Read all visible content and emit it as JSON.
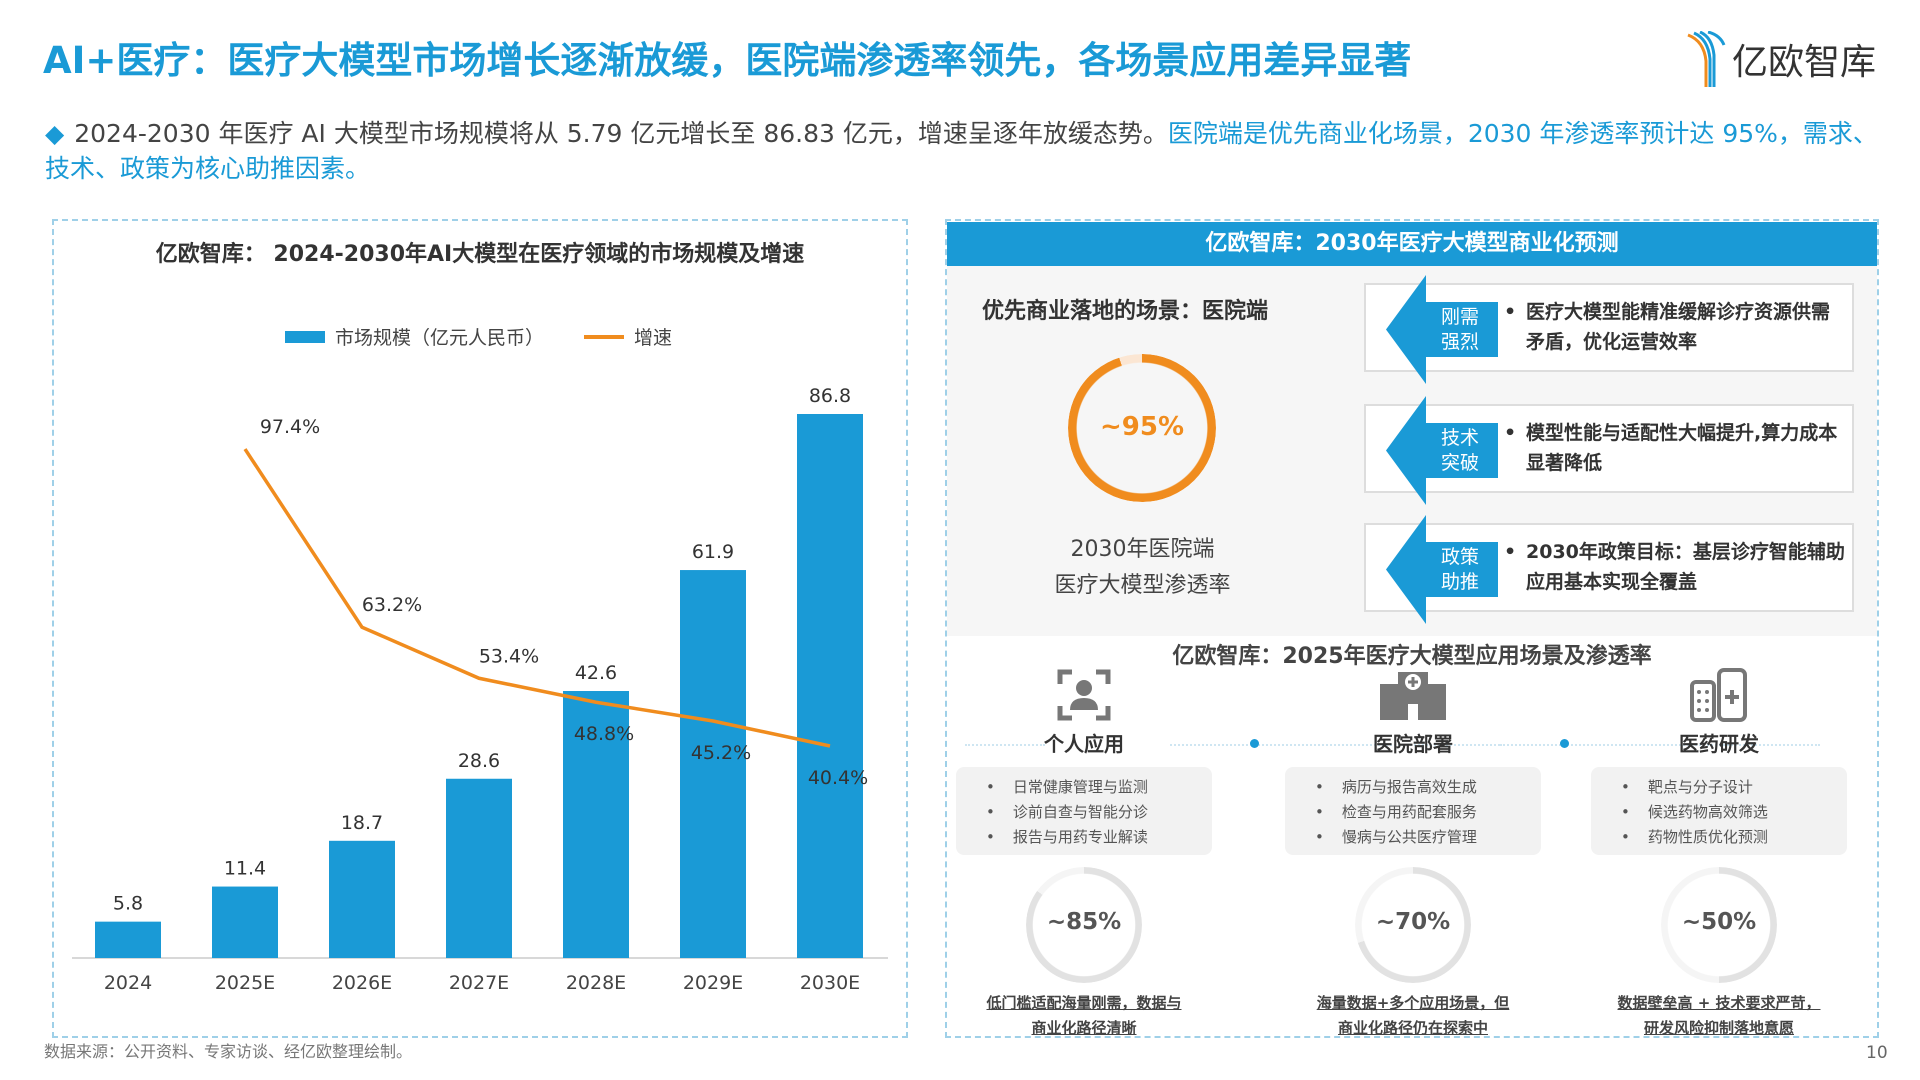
{
  "title": "AI+医疗：医疗大模型市场增长逐渐放缓，医院端渗透率领先，各场景应用差异显著",
  "logo": {
    "text": "亿欧智库"
  },
  "summary": {
    "part1": "2024-2030 年医疗 AI 大模型市场规模将从 5.79 亿元增长至 86.83 亿元，增速呈逐年放缓态势。",
    "part2": "医院端是优先商业化场景，2030 年渗透率预计达 95%，需求、技术、政策为核心助推因素。"
  },
  "colors": {
    "accent": "#1a9ad6",
    "line": "#f08c1e",
    "gray": "#dcdcdc"
  },
  "chart_data": {
    "type": "bar+line",
    "title": "亿欧智库： 2024-2030年AI大模型在医疗领域的市场规模及增速",
    "categories": [
      "2024",
      "2025E",
      "2026E",
      "2027E",
      "2028E",
      "2029E",
      "2030E"
    ],
    "series": [
      {
        "name": "市场规模（亿元人民币）",
        "type": "bar",
        "values": [
          5.8,
          11.4,
          18.7,
          28.6,
          42.6,
          61.9,
          86.8
        ],
        "labels": [
          "5.8",
          "11.4",
          "18.7",
          "28.6",
          "42.6",
          "61.9",
          "86.8"
        ]
      },
      {
        "name": "增速",
        "type": "line",
        "values": [
          null,
          97.4,
          63.2,
          53.4,
          48.8,
          45.2,
          40.4
        ],
        "labels": [
          "",
          "97.4%",
          "63.2%",
          "53.4%",
          "48.8%",
          "45.2%",
          "40.4%"
        ]
      }
    ],
    "legend": "top-center"
  },
  "right": {
    "header": "亿欧智库：2030年医疗大模型商业化预测",
    "priority": "优先商业落地的场景：医院端",
    "donut": {
      "label": "~95%",
      "value": 95
    },
    "caption1": "2030年医院端",
    "caption2": "医疗大模型渗透率",
    "factors": [
      {
        "tag1": "刚需",
        "tag2": "强烈",
        "text": "医疗大模型能精准缓解诊疗资源供需矛盾，优化运营效率"
      },
      {
        "tag1": "技术",
        "tag2": "突破",
        "text": "模型性能与适配性大幅提升,算力成本显著降低"
      },
      {
        "tag1": "政策",
        "tag2": "助推",
        "text": "2030年政策目标：基层诊疗智能辅助应用基本实现全覆盖"
      }
    ],
    "lowTitle": "亿欧智库：2025年医疗大模型应用场景及渗透率",
    "scenes": [
      {
        "name": "个人应用",
        "icon": "person-scan-icon",
        "items": [
          "日常健康管理与监测",
          "诊前自查与智能分诊",
          "报告与用药专业解读"
        ],
        "label": "~85%",
        "value": 85,
        "cap1": "低门槛适配海量刚需，数据与",
        "cap2": "商业化路径清晰"
      },
      {
        "name": "医院部署",
        "icon": "hospital-icon",
        "items": [
          "病历与报告高效生成",
          "检查与用药配套服务",
          "慢病与公共医疗管理"
        ],
        "label": "~70%",
        "value": 70,
        "cap1": "海量数据+多个应用场景，但",
        "cap2": "商业化路径仍在探索中"
      },
      {
        "name": "医药研发",
        "icon": "medicine-icon",
        "items": [
          "靶点与分子设计",
          "候选药物高效筛选",
          "药物性质优化预测"
        ],
        "label": "~50%",
        "value": 50,
        "cap1": "数据壁垒高 + 技术要求严苛，",
        "cap2": "研发风险抑制落地意愿"
      }
    ]
  },
  "source": "数据来源：公开资料、专家访谈、经亿欧整理绘制。",
  "page": "10"
}
